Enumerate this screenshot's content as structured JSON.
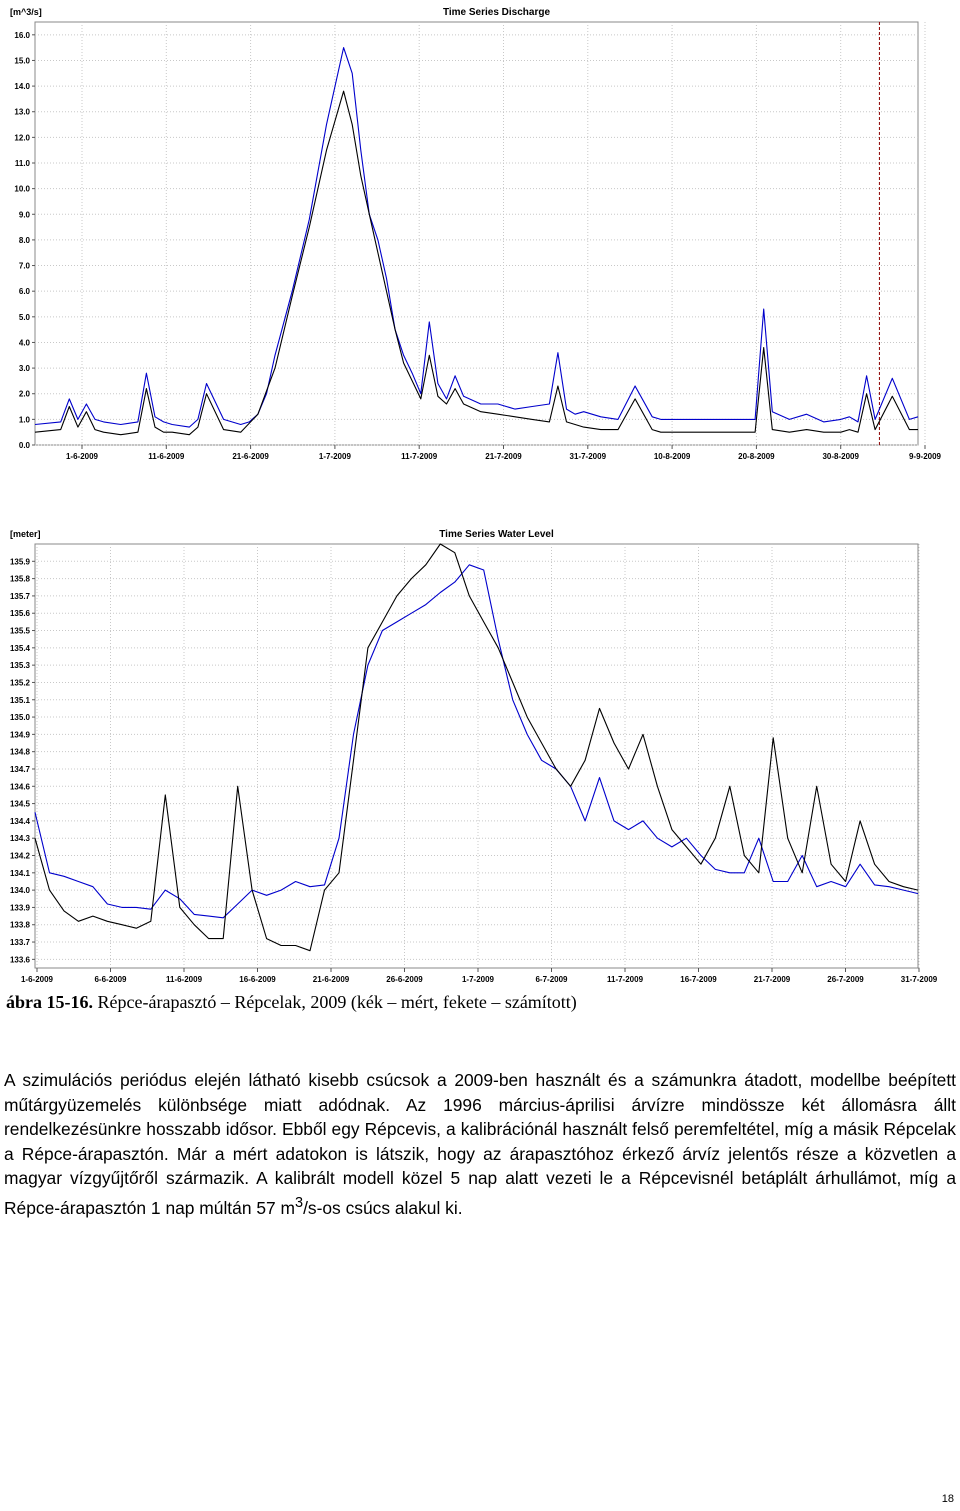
{
  "chart_data": [
    {
      "type": "line",
      "title": "Time Series Discharge",
      "ylabel": "[m^3/s]",
      "ylim": [
        0,
        16.5
      ],
      "yticks": [
        "0.0",
        "1.0",
        "2.0",
        "3.0",
        "4.0",
        "5.0",
        "6.0",
        "7.0",
        "8.0",
        "9.0",
        "10.0",
        "11.0",
        "12.0",
        "13.0",
        "14.0",
        "15.0",
        "16.0"
      ],
      "xlim": [
        0,
        103
      ],
      "xtick_labels": [
        "1-6-2009",
        "11-6-2009",
        "21-6-2009",
        "1-7-2009",
        "11-7-2009",
        "21-7-2009",
        "31-7-2009",
        "10-8-2009",
        "20-8-2009",
        "30-8-2009",
        "9-9-2009"
      ],
      "grid": true,
      "marker_line_x": 98.5,
      "series": [
        {
          "color": "#0000cc",
          "x": [
            0,
            3,
            4,
            5,
            6,
            7,
            8,
            10,
            12,
            13,
            14,
            15,
            16,
            18,
            19,
            20,
            22,
            24,
            25,
            26,
            27,
            28,
            30,
            32,
            34,
            36,
            37,
            38,
            39,
            40,
            41,
            42,
            43,
            44,
            45,
            46,
            47,
            48,
            49,
            50,
            52,
            54,
            56,
            58,
            60,
            61,
            62,
            63,
            64,
            66,
            68,
            70,
            72,
            73,
            74,
            76,
            78,
            80,
            82,
            84,
            85,
            86,
            88,
            90,
            92,
            94,
            95,
            96,
            97,
            98,
            100,
            102,
            103
          ],
          "y": [
            0.8,
            0.9,
            1.8,
            1.0,
            1.6,
            1.0,
            0.9,
            0.8,
            0.9,
            2.8,
            1.1,
            0.9,
            0.8,
            0.7,
            1.0,
            2.4,
            1.0,
            0.8,
            0.9,
            1.2,
            2.0,
            3.5,
            6.0,
            8.8,
            12.5,
            15.5,
            14.5,
            11.5,
            9.0,
            8.0,
            6.5,
            4.5,
            3.5,
            2.8,
            2.0,
            4.8,
            2.4,
            1.8,
            2.7,
            1.9,
            1.6,
            1.6,
            1.4,
            1.5,
            1.6,
            3.6,
            1.4,
            1.2,
            1.3,
            1.1,
            1.0,
            2.3,
            1.1,
            1.0,
            1.0,
            1.0,
            1.0,
            1.0,
            1.0,
            1.0,
            5.3,
            1.3,
            1.0,
            1.2,
            0.9,
            1.0,
            1.1,
            0.9,
            2.7,
            1.0,
            2.6,
            1.0,
            1.1
          ]
        },
        {
          "color": "#000000",
          "x": [
            0,
            3,
            4,
            5,
            6,
            7,
            8,
            10,
            12,
            13,
            14,
            15,
            16,
            18,
            19,
            20,
            22,
            24,
            26,
            28,
            30,
            32,
            34,
            36,
            37,
            38,
            39,
            40,
            41,
            42,
            43,
            44,
            45,
            46,
            47,
            48,
            49,
            50,
            52,
            54,
            56,
            58,
            60,
            61,
            62,
            63,
            64,
            66,
            68,
            70,
            72,
            73,
            74,
            76,
            78,
            80,
            82,
            84,
            85,
            86,
            88,
            90,
            92,
            94,
            95,
            96,
            97,
            98,
            100,
            102,
            103
          ],
          "y": [
            0.5,
            0.6,
            1.5,
            0.7,
            1.3,
            0.6,
            0.5,
            0.4,
            0.5,
            2.2,
            0.7,
            0.5,
            0.5,
            0.4,
            0.7,
            2.0,
            0.6,
            0.5,
            1.2,
            3.0,
            5.8,
            8.5,
            11.5,
            13.8,
            12.5,
            10.5,
            9.0,
            7.5,
            6.0,
            4.5,
            3.2,
            2.5,
            1.8,
            3.5,
            1.9,
            1.6,
            2.2,
            1.6,
            1.3,
            1.2,
            1.1,
            1.0,
            0.9,
            2.3,
            0.9,
            0.8,
            0.7,
            0.6,
            0.6,
            1.8,
            0.6,
            0.5,
            0.5,
            0.5,
            0.5,
            0.5,
            0.5,
            0.5,
            3.8,
            0.6,
            0.5,
            0.6,
            0.5,
            0.5,
            0.6,
            0.5,
            2.0,
            0.6,
            1.9,
            0.6,
            0.6
          ]
        }
      ]
    },
    {
      "type": "line",
      "title": "Time Series Water Level",
      "ylabel": "[meter]",
      "ylim": [
        133.55,
        136.0
      ],
      "yticks": [
        "133.6",
        "133.7",
        "133.8",
        "133.9",
        "134.0",
        "134.1",
        "134.2",
        "134.3",
        "134.4",
        "134.5",
        "134.6",
        "134.7",
        "134.8",
        "134.9",
        "135.0",
        "135.1",
        "135.2",
        "135.3",
        "135.4",
        "135.5",
        "135.6",
        "135.7",
        "135.8",
        "135.9"
      ],
      "xlim": [
        0,
        61
      ],
      "xtick_labels": [
        "1-6-2009",
        "6-6-2009",
        "11-6-2009",
        "16-6-2009",
        "21-6-2009",
        "26-6-2009",
        "1-7-2009",
        "6-7-2009",
        "11-7-2009",
        "16-7-2009",
        "21-7-2009",
        "26-7-2009",
        "31-7-2009"
      ],
      "grid": true,
      "series": [
        {
          "color": "#0000cc",
          "x": [
            0,
            1,
            2,
            3,
            4,
            5,
            6,
            7,
            8,
            9,
            10,
            11,
            12,
            13,
            14,
            15,
            16,
            17,
            18,
            19,
            20,
            21,
            22,
            23,
            24,
            25,
            26,
            27,
            28,
            29,
            30,
            31,
            32,
            33,
            34,
            35,
            36,
            37,
            38,
            39,
            40,
            41,
            42,
            43,
            44,
            45,
            46,
            47,
            48,
            49,
            50,
            51,
            52,
            53,
            54,
            55,
            56,
            57,
            58,
            59,
            60,
            61
          ],
          "y": [
            134.45,
            134.1,
            134.08,
            134.05,
            134.02,
            133.92,
            133.9,
            133.9,
            133.89,
            134.0,
            133.95,
            133.86,
            133.85,
            133.84,
            133.92,
            134.0,
            133.97,
            134.0,
            134.05,
            134.02,
            134.03,
            134.3,
            134.9,
            135.3,
            135.5,
            135.55,
            135.6,
            135.65,
            135.72,
            135.78,
            135.88,
            135.85,
            135.45,
            135.1,
            134.9,
            134.75,
            134.7,
            134.6,
            134.4,
            134.65,
            134.4,
            134.35,
            134.4,
            134.3,
            134.25,
            134.3,
            134.2,
            134.12,
            134.1,
            134.1,
            134.3,
            134.05,
            134.05,
            134.2,
            134.02,
            134.05,
            134.02,
            134.15,
            134.03,
            134.02,
            134.0,
            133.98
          ]
        },
        {
          "color": "#000000",
          "x": [
            0,
            1,
            2,
            3,
            4,
            5,
            6,
            7,
            8,
            9,
            10,
            11,
            12,
            13,
            14,
            15,
            16,
            17,
            18,
            19,
            20,
            21,
            22,
            23,
            24,
            25,
            26,
            27,
            28,
            29,
            30,
            31,
            32,
            33,
            34,
            35,
            36,
            37,
            38,
            39,
            40,
            41,
            42,
            43,
            44,
            45,
            46,
            47,
            48,
            49,
            50,
            51,
            52,
            53,
            54,
            55,
            56,
            57,
            58,
            59,
            60,
            61
          ],
          "y": [
            134.3,
            134.0,
            133.88,
            133.82,
            133.85,
            133.82,
            133.8,
            133.78,
            133.82,
            134.55,
            133.9,
            133.8,
            133.72,
            133.72,
            134.6,
            134.0,
            133.72,
            133.68,
            133.68,
            133.65,
            134.0,
            134.1,
            134.75,
            135.4,
            135.55,
            135.7,
            135.8,
            135.88,
            136.0,
            135.95,
            135.7,
            135.55,
            135.4,
            135.2,
            135.0,
            134.85,
            134.7,
            134.6,
            134.75,
            135.05,
            134.85,
            134.7,
            134.9,
            134.6,
            134.35,
            134.25,
            134.15,
            134.3,
            134.6,
            134.2,
            134.1,
            134.88,
            134.3,
            134.1,
            134.6,
            134.15,
            134.05,
            134.4,
            134.15,
            134.05,
            134.02,
            134.0
          ]
        }
      ]
    }
  ],
  "caption": {
    "number": "ábra 15-16.",
    "text": " Répce-árapasztó – Répcelak, 2009 (kék – mért, fekete – számított)"
  },
  "paragraph": {
    "line1": "A szimulációs periódus elején látható kisebb csúcsok a 2009-ben használt és a számunkra átadott, modellbe beépített műtárgyüzemelés különbsége miatt adódnak. Az 1996 március-áprilisi árvízre mindössze két állomásra állt rendelkezésünkre hosszabb idősor. Ebből egy Répcevis, a kalibrációnál használt felső peremfeltétel, míg a másik Répcelak a Répce-árapasztón. Már a mért adatokon is látszik, hogy az árapasztóhoz érkező árvíz jelentős része a közvetlen a magyar vízgyűjtőről származik. A kalibrált modell közel 5 nap alatt vezeti le a Répcevisnél betáplált árhullámot, míg a Répce-árapasztón 1 nap múltán 57 m",
    "superscript": "3",
    "line2": "/s-os csúcs alakul ki."
  },
  "page_number": "18"
}
